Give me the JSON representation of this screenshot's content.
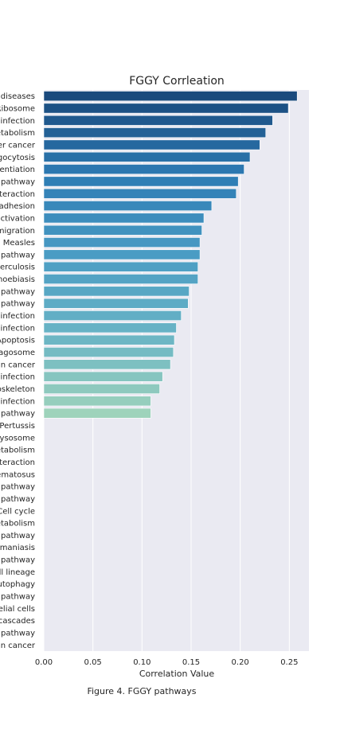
{
  "caption": "Figure 4. FGGY pathways",
  "chart_data": {
    "type": "bar",
    "orientation": "horizontal",
    "title": "FGGY Corrleation",
    "xlabel": "Correlation Value",
    "ylabel": "",
    "xlim": [
      0,
      0.27
    ],
    "xticks": [
      "0.00",
      "0.05",
      "0.10",
      "0.15",
      "0.20",
      "0.25"
    ],
    "grid": true,
    "background": "#eaeaf2",
    "palette": [
      "#1a4a7d",
      "#2d7bb4",
      "#4a9cc4",
      "#69b4c5",
      "#9ed3bb"
    ],
    "categories": [
      "diseases",
      "Ribosome",
      "infection",
      "etabolism",
      "er cancer",
      "gocytosis",
      "rentiation",
      "pathway",
      "nteraction",
      "adhesion",
      "activation",
      "migration",
      "Measles",
      "pathway",
      "erculosis",
      "noebiasis",
      "pathway",
      "pathway",
      "infection",
      "infection",
      "Apoptosis",
      "agosome",
      "in cancer",
      "infection",
      "oskeleton",
      "infection",
      "pathway",
      "Pertussis",
      "ysosome",
      "etabolism",
      "nteraction",
      "ematosus",
      "pathway",
      "pathway",
      "Cell cycle",
      "etabolism",
      "pathway",
      "maniasis",
      "pathway",
      "ll lineage",
      "utophagy",
      "pathway",
      "elial cells",
      "cascades",
      "pathway",
      "in cancer"
    ],
    "values": [
      0.258,
      0.249,
      0.233,
      0.226,
      0.22,
      0.21,
      0.204,
      0.198,
      0.196,
      0.171,
      0.163,
      0.161,
      0.159,
      0.159,
      0.157,
      0.157,
      0.148,
      0.147,
      0.14,
      0.135,
      0.133,
      0.132,
      0.129,
      0.121,
      0.118,
      0.109,
      0.109,
      0,
      0,
      0,
      0,
      0,
      0,
      0,
      0,
      0,
      0,
      0,
      0,
      0,
      0,
      0,
      0,
      0,
      0,
      0
    ]
  }
}
